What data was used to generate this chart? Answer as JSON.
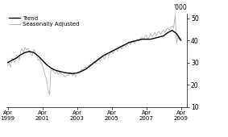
{
  "title": "",
  "ylabel_right": "'000",
  "ylim": [
    10,
    52
  ],
  "yticks": [
    10,
    20,
    30,
    40,
    50
  ],
  "xlim_start": 1999.2,
  "xlim_end": 2009.6,
  "xtick_years": [
    1999,
    2001,
    2003,
    2005,
    2007,
    2009
  ],
  "trend_color": "#000000",
  "seasonal_color": "#b0b0b0",
  "trend_linewidth": 1.0,
  "seasonal_linewidth": 0.6,
  "legend_entries": [
    "Trend",
    "Seasonally Adjusted"
  ],
  "background_color": "#ffffff",
  "trend_data": [
    [
      1999.25,
      30.0
    ],
    [
      1999.5,
      31.0
    ],
    [
      1999.75,
      32.0
    ],
    [
      2000.0,
      33.5
    ],
    [
      2000.25,
      34.5
    ],
    [
      2000.5,
      35.0
    ],
    [
      2000.75,
      34.5
    ],
    [
      2001.0,
      33.0
    ],
    [
      2001.25,
      31.0
    ],
    [
      2001.5,
      29.0
    ],
    [
      2001.75,
      27.5
    ],
    [
      2002.0,
      26.5
    ],
    [
      2002.25,
      26.0
    ],
    [
      2002.5,
      25.5
    ],
    [
      2002.75,
      25.2
    ],
    [
      2003.0,
      25.0
    ],
    [
      2003.25,
      25.3
    ],
    [
      2003.5,
      26.0
    ],
    [
      2003.75,
      27.0
    ],
    [
      2004.0,
      28.5
    ],
    [
      2004.25,
      30.0
    ],
    [
      2004.5,
      31.5
    ],
    [
      2004.75,
      33.0
    ],
    [
      2005.0,
      34.0
    ],
    [
      2005.25,
      35.0
    ],
    [
      2005.5,
      36.0
    ],
    [
      2005.75,
      37.0
    ],
    [
      2006.0,
      38.0
    ],
    [
      2006.25,
      39.0
    ],
    [
      2006.5,
      39.5
    ],
    [
      2006.75,
      40.0
    ],
    [
      2007.0,
      40.5
    ],
    [
      2007.25,
      40.5
    ],
    [
      2007.5,
      40.5
    ],
    [
      2007.75,
      41.0
    ],
    [
      2008.0,
      41.5
    ],
    [
      2008.25,
      42.0
    ],
    [
      2008.5,
      43.5
    ],
    [
      2008.75,
      44.5
    ],
    [
      2009.0,
      43.0
    ],
    [
      2009.25,
      40.0
    ]
  ],
  "seasonal_data": [
    [
      1999.25,
      28.5
    ],
    [
      1999.33,
      30.0
    ],
    [
      1999.42,
      28.0
    ],
    [
      1999.5,
      32.0
    ],
    [
      1999.58,
      31.0
    ],
    [
      1999.67,
      30.0
    ],
    [
      1999.75,
      33.5
    ],
    [
      1999.83,
      32.5
    ],
    [
      1999.92,
      31.0
    ],
    [
      2000.0,
      35.0
    ],
    [
      2000.08,
      36.0
    ],
    [
      2000.17,
      34.5
    ],
    [
      2000.25,
      37.0
    ],
    [
      2000.33,
      35.5
    ],
    [
      2000.42,
      36.5
    ],
    [
      2000.5,
      35.0
    ],
    [
      2000.58,
      34.0
    ],
    [
      2000.67,
      33.0
    ],
    [
      2000.75,
      36.0
    ],
    [
      2000.83,
      35.0
    ],
    [
      2000.92,
      33.5
    ],
    [
      2001.0,
      31.0
    ],
    [
      2001.08,
      31.5
    ],
    [
      2001.17,
      30.0
    ],
    [
      2001.25,
      29.0
    ],
    [
      2001.33,
      26.5
    ],
    [
      2001.42,
      24.0
    ],
    [
      2001.5,
      22.0
    ],
    [
      2001.58,
      17.5
    ],
    [
      2001.67,
      15.5
    ],
    [
      2001.75,
      27.5
    ],
    [
      2001.83,
      27.0
    ],
    [
      2001.92,
      25.5
    ],
    [
      2002.0,
      25.0
    ],
    [
      2002.08,
      26.0
    ],
    [
      2002.17,
      24.5
    ],
    [
      2002.25,
      26.0
    ],
    [
      2002.33,
      25.0
    ],
    [
      2002.42,
      24.5
    ],
    [
      2002.5,
      24.0
    ],
    [
      2002.58,
      23.5
    ],
    [
      2002.67,
      24.5
    ],
    [
      2002.75,
      24.0
    ],
    [
      2002.83,
      25.5
    ],
    [
      2002.92,
      25.0
    ],
    [
      2003.0,
      24.0
    ],
    [
      2003.08,
      25.0
    ],
    [
      2003.17,
      23.5
    ],
    [
      2003.25,
      25.0
    ],
    [
      2003.33,
      25.5
    ],
    [
      2003.42,
      25.0
    ],
    [
      2003.5,
      27.0
    ],
    [
      2003.58,
      26.5
    ],
    [
      2003.67,
      27.5
    ],
    [
      2003.75,
      28.0
    ],
    [
      2003.83,
      27.0
    ],
    [
      2003.92,
      28.5
    ],
    [
      2004.0,
      29.0
    ],
    [
      2004.08,
      28.5
    ],
    [
      2004.17,
      30.0
    ],
    [
      2004.25,
      30.5
    ],
    [
      2004.33,
      29.5
    ],
    [
      2004.42,
      31.0
    ],
    [
      2004.5,
      32.0
    ],
    [
      2004.58,
      30.5
    ],
    [
      2004.67,
      32.0
    ],
    [
      2004.75,
      33.0
    ],
    [
      2004.83,
      31.5
    ],
    [
      2004.92,
      33.5
    ],
    [
      2005.0,
      34.0
    ],
    [
      2005.08,
      33.0
    ],
    [
      2005.17,
      34.5
    ],
    [
      2005.25,
      35.0
    ],
    [
      2005.33,
      34.0
    ],
    [
      2005.42,
      35.5
    ],
    [
      2005.5,
      36.0
    ],
    [
      2005.58,
      35.0
    ],
    [
      2005.67,
      36.5
    ],
    [
      2005.75,
      37.0
    ],
    [
      2005.83,
      36.0
    ],
    [
      2005.92,
      37.5
    ],
    [
      2006.0,
      38.0
    ],
    [
      2006.08,
      37.0
    ],
    [
      2006.17,
      38.5
    ],
    [
      2006.25,
      39.5
    ],
    [
      2006.33,
      38.0
    ],
    [
      2006.42,
      39.5
    ],
    [
      2006.5,
      40.0
    ],
    [
      2006.58,
      38.5
    ],
    [
      2006.67,
      40.0
    ],
    [
      2006.75,
      40.5
    ],
    [
      2006.83,
      39.5
    ],
    [
      2006.92,
      41.0
    ],
    [
      2007.0,
      41.5
    ],
    [
      2007.08,
      40.5
    ],
    [
      2007.17,
      41.5
    ],
    [
      2007.25,
      42.5
    ],
    [
      2007.33,
      40.5
    ],
    [
      2007.42,
      41.5
    ],
    [
      2007.5,
      43.0
    ],
    [
      2007.58,
      41.5
    ],
    [
      2007.67,
      42.5
    ],
    [
      2007.75,
      43.5
    ],
    [
      2007.83,
      42.0
    ],
    [
      2007.92,
      43.5
    ],
    [
      2008.0,
      44.0
    ],
    [
      2008.08,
      42.5
    ],
    [
      2008.17,
      44.0
    ],
    [
      2008.25,
      44.5
    ],
    [
      2008.33,
      43.5
    ],
    [
      2008.42,
      45.0
    ],
    [
      2008.5,
      45.5
    ],
    [
      2008.58,
      44.5
    ],
    [
      2008.67,
      46.0
    ],
    [
      2008.75,
      46.5
    ],
    [
      2008.83,
      45.5
    ],
    [
      2008.92,
      51.5
    ],
    [
      2009.0,
      38.5
    ],
    [
      2009.08,
      41.5
    ],
    [
      2009.17,
      40.0
    ],
    [
      2009.25,
      41.0
    ]
  ]
}
